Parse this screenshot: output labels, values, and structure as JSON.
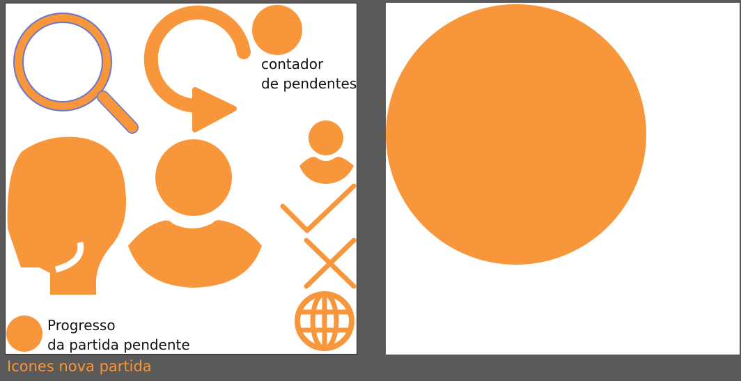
{
  "accent_color": "#f7963a",
  "outline_color": "#6a76cc",
  "labels": {
    "counter": "contador\nde pendentes",
    "progress": "Progresso\nda partida pendente"
  },
  "footer": {
    "title": "Icones nova partida"
  },
  "icons": [
    "search-icon",
    "refresh-arrow-icon",
    "counter-dot-icon",
    "user-small-icon",
    "checkmark-icon",
    "close-x-icon",
    "globe-icon",
    "head-profile-icon",
    "user-large-icon",
    "progress-dot-icon",
    "large-circle-icon"
  ]
}
